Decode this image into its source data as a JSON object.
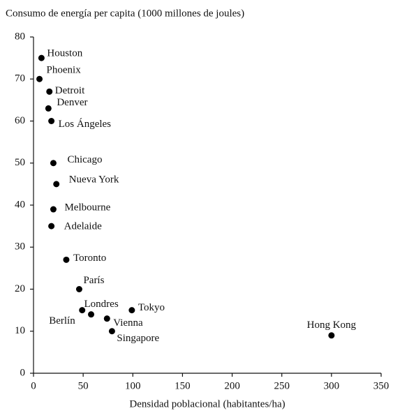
{
  "chart_data": {
    "type": "scatter",
    "title": "Consumo de energía per capita (1000 millones de joules)",
    "x_label": "Densidad poblacional (habitantes/ha)",
    "labels": [
      "Houston",
      "Phoenix",
      "Detroit",
      "Denver",
      "Los Ángeles",
      "Chicago",
      "Nueva York",
      "Melbourne",
      "Adelaide",
      "Toronto",
      "París",
      "Londres",
      "Berlín",
      "Tokyo",
      "Vienna",
      "Singapore",
      "Hong Kong"
    ],
    "x": [
      8,
      6,
      16,
      15,
      18,
      20,
      23,
      20,
      18,
      33,
      46,
      58,
      49,
      99,
      74,
      79,
      300
    ],
    "y": [
      75,
      70,
      67,
      63,
      60,
      50,
      45,
      39,
      35,
      27,
      20,
      14,
      15,
      15,
      13,
      10,
      9
    ],
    "color": "#000000",
    "xlim": [
      0,
      350
    ],
    "xticks": [
      0,
      50,
      100,
      150,
      200,
      250,
      300,
      350
    ],
    "ylim": [
      0,
      80
    ],
    "yticks": [
      0,
      10,
      20,
      30,
      40,
      50,
      60,
      70,
      80
    ],
    "grid": false
  }
}
